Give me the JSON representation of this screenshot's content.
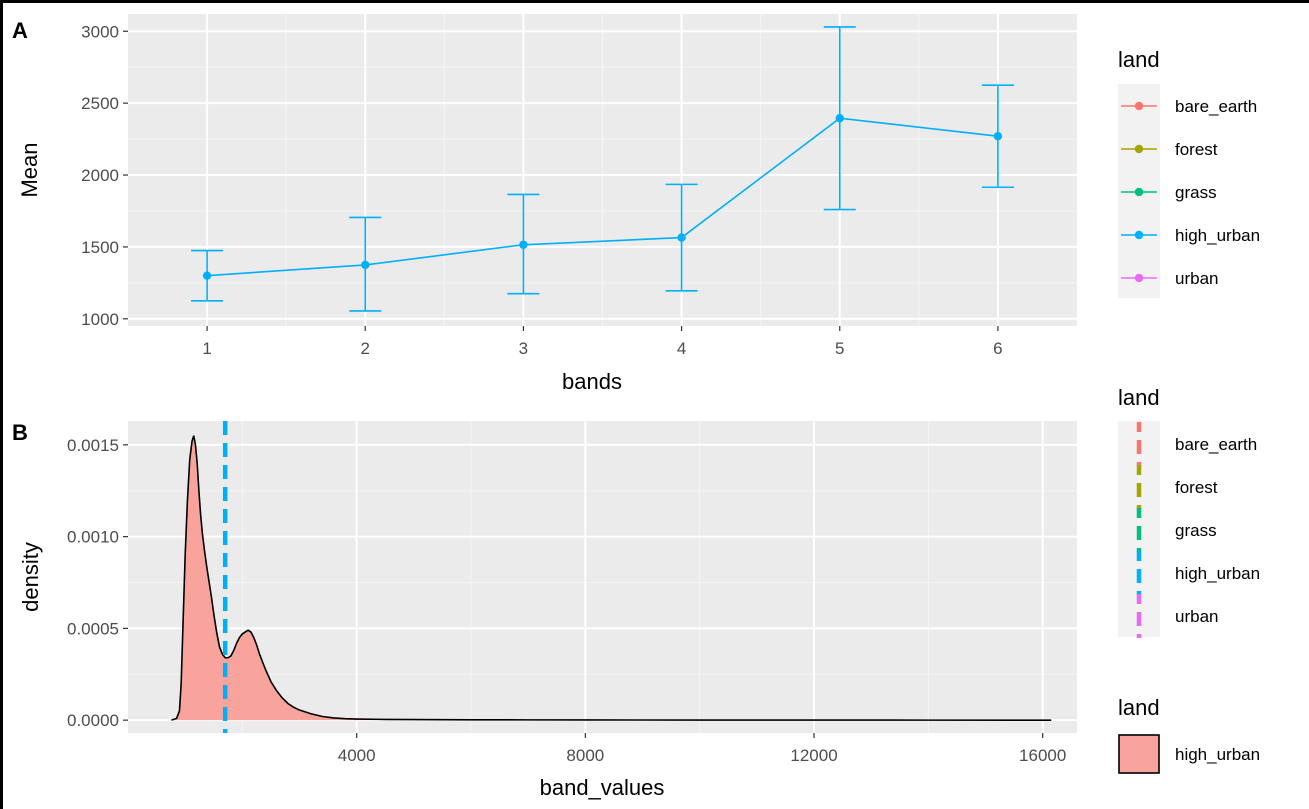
{
  "panels": {
    "a_label": "A",
    "b_label": "B"
  },
  "chart_data": [
    {
      "type": "line",
      "panel": "A",
      "title": "",
      "xlabel": "bands",
      "ylabel": "Mean",
      "x": [
        1,
        2,
        3,
        4,
        5,
        6
      ],
      "xlim": [
        0.5,
        6.5
      ],
      "ylim": [
        950,
        3120
      ],
      "yticks": [
        1000,
        1500,
        2000,
        2500,
        3000
      ],
      "grid": true,
      "series": [
        {
          "name": "high_urban",
          "color": "#00b0f6",
          "values": [
            1300,
            1375,
            1515,
            1565,
            2395,
            2270
          ],
          "error_low": [
            1125,
            1055,
            1175,
            1195,
            1760,
            1915
          ],
          "error_high": [
            1475,
            1705,
            1865,
            1935,
            3030,
            2625
          ]
        }
      ],
      "legend": {
        "title": "land",
        "position": "right",
        "items": [
          {
            "label": "bare_earth",
            "color": "#f8766d"
          },
          {
            "label": "forest",
            "color": "#a3a500"
          },
          {
            "label": "grass",
            "color": "#00bf7d"
          },
          {
            "label": "high_urban",
            "color": "#00b0f6"
          },
          {
            "label": "urban",
            "color": "#e76bf3"
          }
        ]
      }
    },
    {
      "type": "area",
      "panel": "B",
      "title": "",
      "xlabel": "band_values",
      "ylabel": "density",
      "xlim": [
        0,
        16600
      ],
      "ylim": [
        -7e-05,
        0.00163
      ],
      "xticks": [
        4000,
        8000,
        12000,
        16000
      ],
      "yticks": [
        0.0,
        0.0005,
        0.001,
        0.0015
      ],
      "ytick_labels": [
        "0.0000",
        "0.0005",
        "0.0010",
        "0.0015"
      ],
      "grid": true,
      "series": [
        {
          "name": "high_urban",
          "fill": "#f8a49c",
          "stroke": "#000000",
          "x": [
            760,
            850,
            900,
            930,
            960,
            1000,
            1040,
            1080,
            1120,
            1150,
            1180,
            1210,
            1240,
            1270,
            1300,
            1340,
            1380,
            1420,
            1460,
            1500,
            1550,
            1600,
            1650,
            1700,
            1750,
            1800,
            1850,
            1900,
            1950,
            2000,
            2050,
            2100,
            2150,
            2200,
            2250,
            2300,
            2400,
            2500,
            2600,
            2700,
            2800,
            2900,
            3000,
            3200,
            3400,
            3600,
            3800,
            4000,
            4500,
            5000,
            6000,
            7000,
            8000,
            10000,
            12000,
            14000,
            16150
          ],
          "values": [
            0.0,
            1e-05,
            5e-05,
            0.0002,
            0.0005,
            0.0009,
            0.0012,
            0.00142,
            0.00152,
            0.00155,
            0.0015,
            0.0014,
            0.00125,
            0.00112,
            0.00102,
            0.00092,
            0.00083,
            0.00075,
            0.00067,
            0.00058,
            0.00048,
            0.0004,
            0.00036,
            0.00034,
            0.00034,
            0.00035,
            0.00038,
            0.00042,
            0.00045,
            0.00047,
            0.00048,
            0.00049,
            0.00048,
            0.00045,
            0.00041,
            0.00036,
            0.00028,
            0.00021,
            0.00016,
            0.00012,
            9e-05,
            7e-05,
            5.5e-05,
            3.5e-05,
            2e-05,
            1.2e-05,
            8e-06,
            6e-06,
            4e-06,
            3e-06,
            2e-06,
            1.5e-06,
            1e-06,
            6e-07,
            4e-07,
            2e-07,
            0.0
          ]
        }
      ],
      "vline": {
        "x": 1700,
        "color": "#00b0f6",
        "style": "dashed",
        "label": "high_urban"
      },
      "legends": [
        {
          "title": "land",
          "kind": "linetype",
          "items": [
            {
              "label": "bare_earth",
              "color": "#f8766d"
            },
            {
              "label": "forest",
              "color": "#a3a500"
            },
            {
              "label": "grass",
              "color": "#00bf7d"
            },
            {
              "label": "high_urban",
              "color": "#00b0f6"
            },
            {
              "label": "urban",
              "color": "#e76bf3"
            }
          ]
        },
        {
          "title": "land",
          "kind": "fill",
          "items": [
            {
              "label": "high_urban",
              "color": "#f8a49c"
            }
          ]
        }
      ]
    }
  ]
}
